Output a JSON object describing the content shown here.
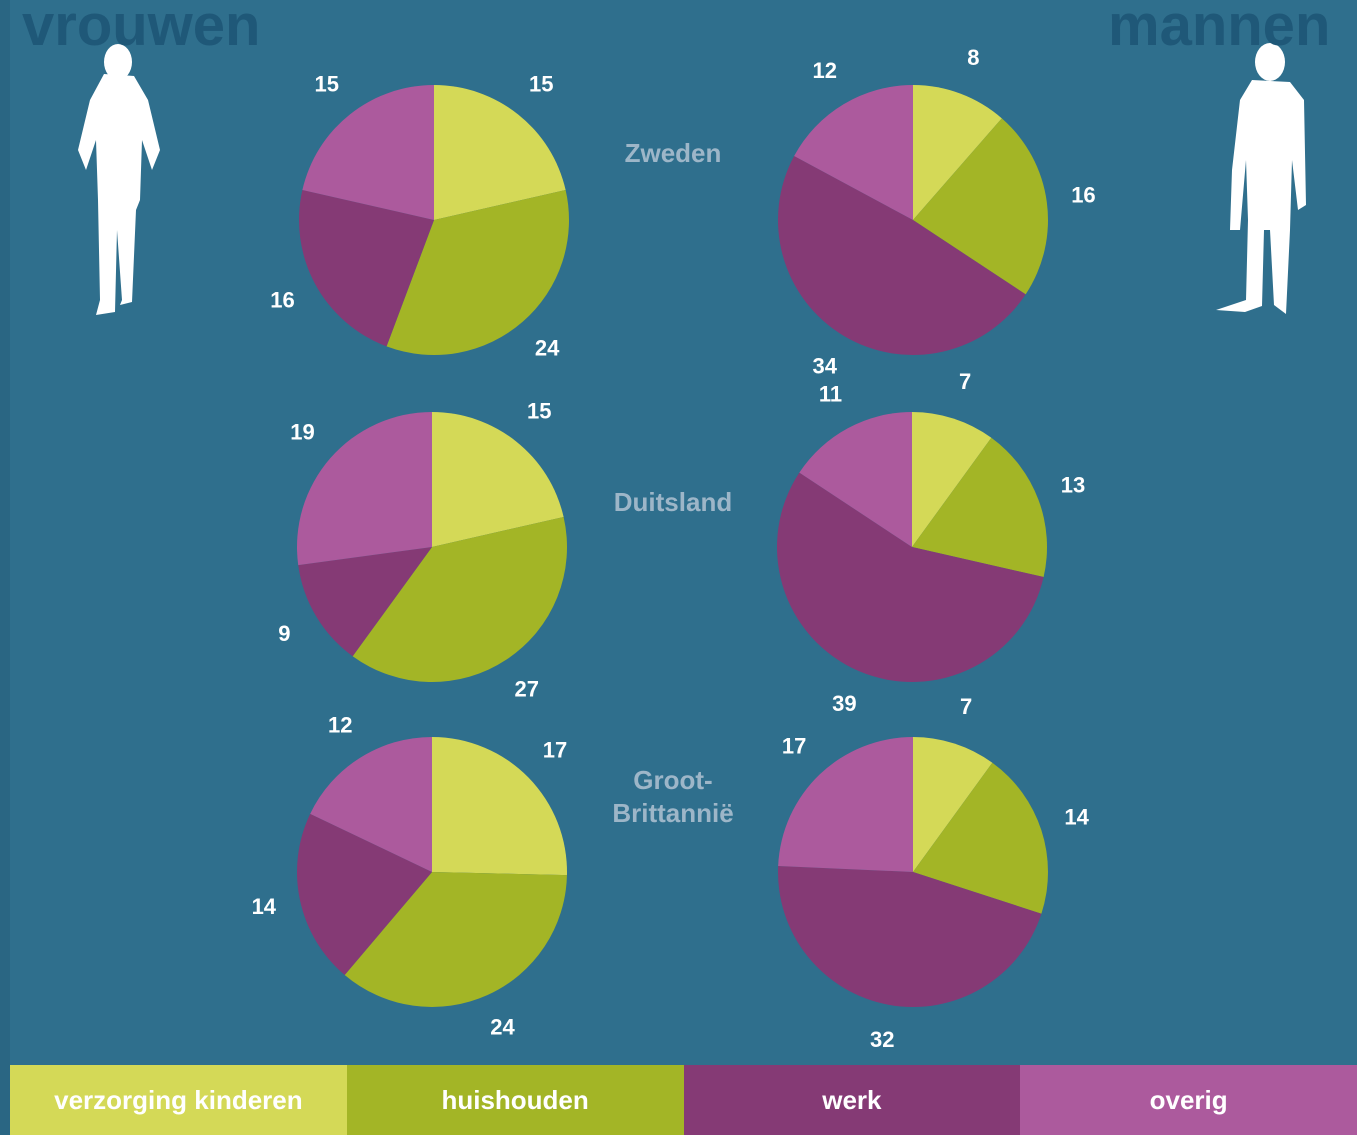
{
  "groups": [
    "vrouwen",
    "mannen"
  ],
  "countries": [
    "Zweden",
    "Duitsland",
    "Groot-Brittannië"
  ],
  "legend": {
    "categories": [
      "verzorging kinderen",
      "huishouden",
      "werk",
      "overig"
    ],
    "colors": [
      "#d4d957",
      "#a3b526",
      "#853a75",
      "#ac5a9d"
    ]
  },
  "chart_data": [
    {
      "type": "pie",
      "values": [
        15,
        24,
        16,
        15
      ]
    },
    {
      "type": "pie",
      "values": [
        8,
        16,
        34,
        12
      ]
    },
    {
      "type": "pie",
      "values": [
        15,
        27,
        9,
        19
      ]
    },
    {
      "type": "pie",
      "values": [
        7,
        13,
        39,
        11
      ]
    },
    {
      "type": "pie",
      "values": [
        17,
        24,
        14,
        12
      ]
    },
    {
      "type": "pie",
      "values": [
        7,
        14,
        32,
        17
      ]
    }
  ]
}
